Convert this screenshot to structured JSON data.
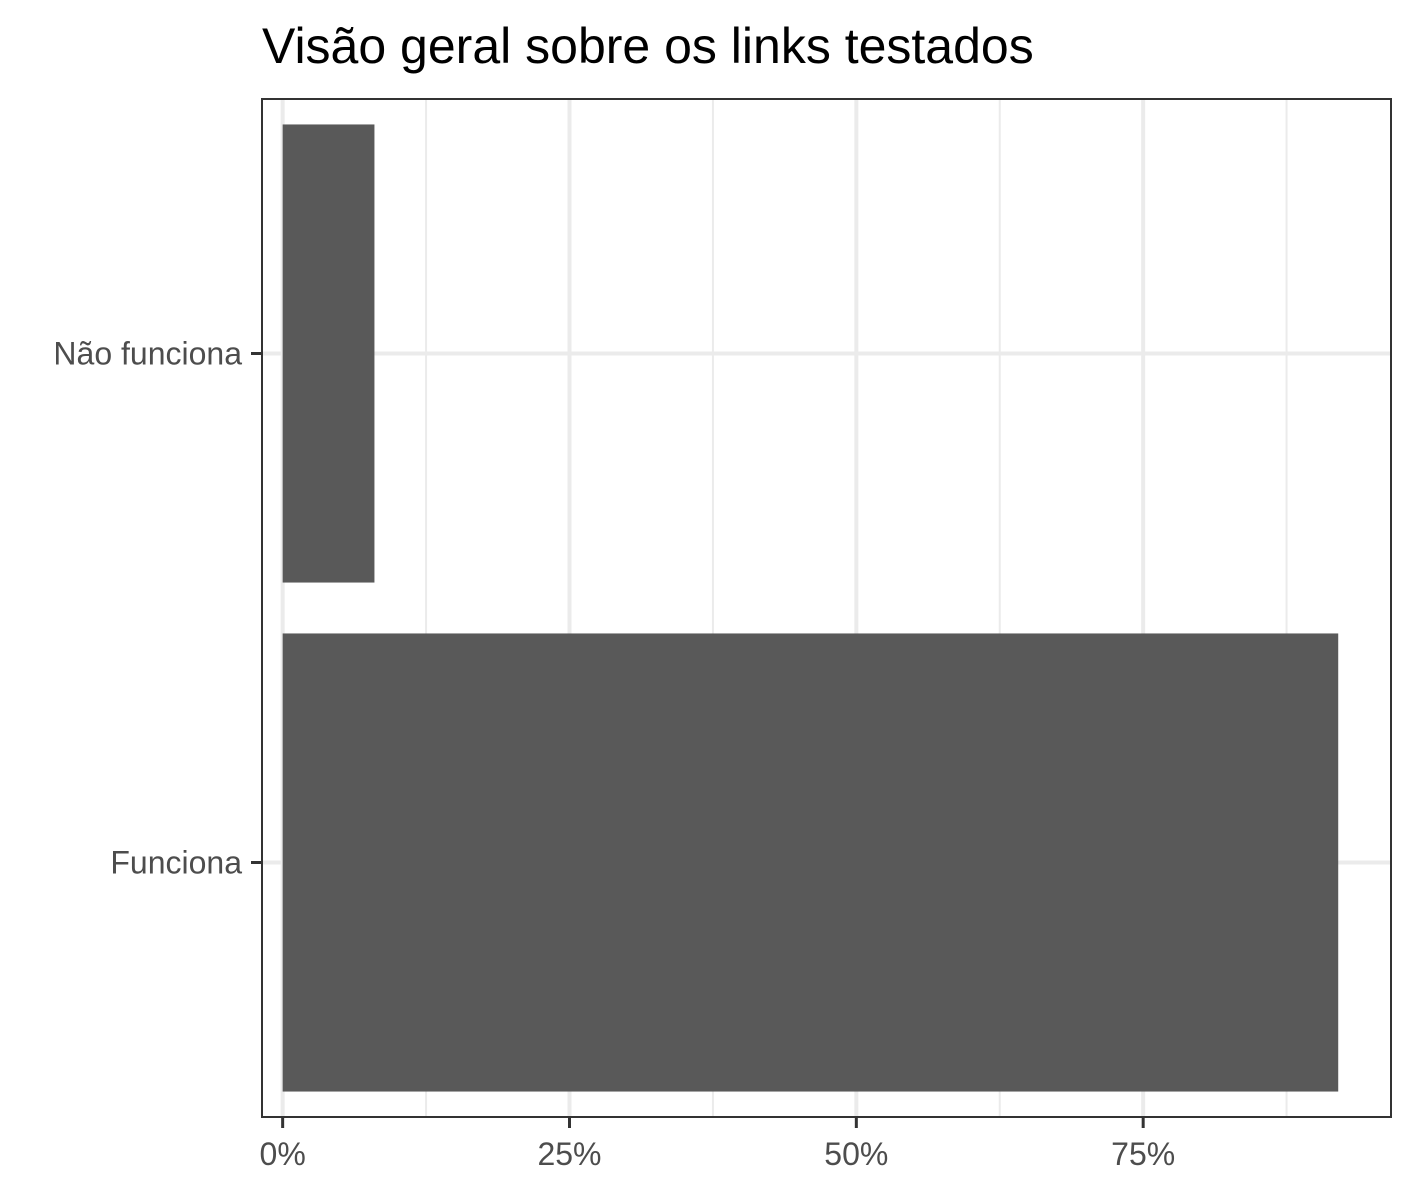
{
  "chart_data": {
    "type": "bar",
    "orientation": "horizontal",
    "title": "Visão geral sobre os links testados",
    "xlabel": "",
    "ylabel": "",
    "categories": [
      "Não funciona",
      "Funciona"
    ],
    "values": [
      8,
      92
    ],
    "value_unit": "%",
    "xlim": [
      -1.8,
      96.6
    ],
    "x_ticks": [
      0,
      25,
      50,
      75
    ],
    "x_tick_labels": [
      "0%",
      "25%",
      "50%",
      "75%"
    ],
    "grid": true,
    "legend": "none",
    "colors": {
      "bar": "#595959",
      "grid": "#ebebeb",
      "axis": "#333333",
      "tick_text": "#4d4d4d"
    }
  }
}
